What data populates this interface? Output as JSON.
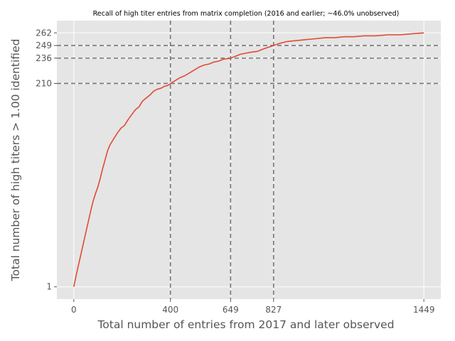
{
  "chart_data": {
    "type": "line",
    "title": "Recall of high titer entries from matrix completion (2016 and earlier; ~46.0% unobserved)",
    "xlabel": "Total number of entries from 2017 and later observed",
    "ylabel": "Total number of high titers > 1.00 identified",
    "xlim": [
      -70,
      1519
    ],
    "ylim": [
      -11.6,
      274.6
    ],
    "xticks": [
      0,
      400,
      649,
      827,
      1449
    ],
    "yticks": [
      1,
      210,
      236,
      249,
      262
    ],
    "grid": true,
    "colors": {
      "background": "#e5e5e5",
      "grid": "#ffffff",
      "line": "#e24a33",
      "reference": "#777777"
    },
    "reference_lines": {
      "vertical": [
        400,
        649,
        827
      ],
      "horizontal": [
        210,
        236,
        249,
        262
      ]
    },
    "series": [
      {
        "x": [
          0,
          10,
          20,
          30,
          40,
          50,
          60,
          70,
          80,
          90,
          100,
          110,
          120,
          130,
          140,
          150,
          165,
          180,
          195,
          210,
          225,
          240,
          255,
          270,
          285,
          300,
          315,
          330,
          345,
          360,
          375,
          390,
          400,
          420,
          440,
          460,
          480,
          500,
          520,
          540,
          560,
          580,
          600,
          620,
          649,
          670,
          690,
          710,
          730,
          760,
          790,
          827,
          850,
          880,
          920,
          960,
          1000,
          1040,
          1080,
          1120,
          1160,
          1200,
          1250,
          1300,
          1350,
          1400,
          1449
        ],
        "y": [
          1,
          13,
          24,
          35,
          46,
          57,
          68,
          79,
          89,
          97,
          104,
          113,
          123,
          132,
          141,
          147,
          153,
          159,
          164,
          167,
          173,
          178,
          183,
          186,
          192,
          195,
          198,
          202,
          204,
          205,
          207,
          208,
          210,
          213,
          216,
          218,
          221,
          224,
          227,
          229,
          230,
          232,
          233,
          235,
          236,
          238,
          240,
          241,
          242,
          243,
          246,
          249,
          251,
          253,
          254,
          255,
          256,
          257,
          257,
          258,
          258,
          259,
          259,
          260,
          260,
          261,
          262
        ]
      }
    ]
  }
}
